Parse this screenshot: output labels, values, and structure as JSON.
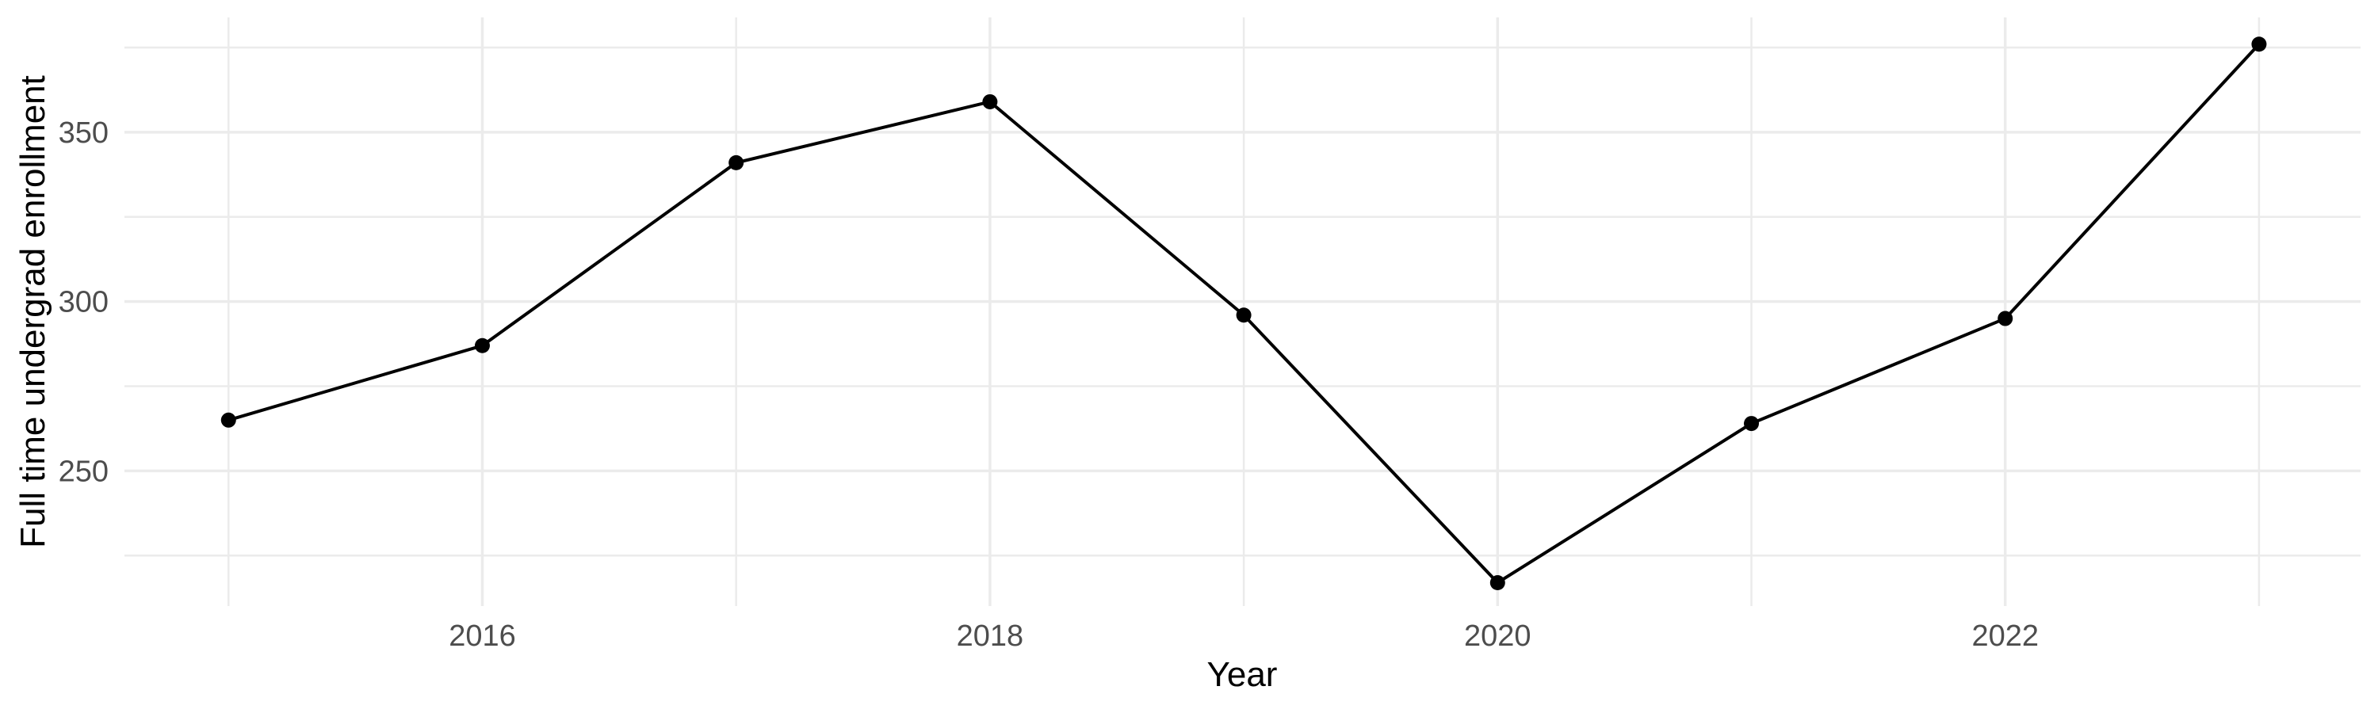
{
  "chart_data": {
    "type": "line",
    "title": "",
    "xlabel": "Year",
    "ylabel": "Full time undergrad enrollment",
    "x": [
      2015,
      2016,
      2017,
      2018,
      2019,
      2020,
      2021,
      2022,
      2023
    ],
    "series": [
      {
        "name": "Full time undergrad enrollment",
        "values": [
          265,
          287,
          341,
          359,
          296,
          217,
          264,
          295,
          376
        ]
      }
    ],
    "x_ticks_major": [
      2016,
      2018,
      2020,
      2022
    ],
    "x_ticks_minor": [
      2015,
      2017,
      2019,
      2021,
      2023
    ],
    "y_ticks_major": [
      250,
      300,
      350
    ],
    "y_ticks_minor": [
      225,
      275,
      325,
      375
    ],
    "xlim": [
      2014.59,
      2023.4
    ],
    "ylim": [
      210.1,
      383.9
    ],
    "grid": "major and minor, no panel border, no tick marks",
    "legend": false,
    "colors": {
      "line": "#000000",
      "point": "#000000",
      "grid_major": "#ebebeb",
      "grid_minor": "#ebebeb",
      "tick_label": "#4d4d4d",
      "axis_title": "#000000",
      "background": "#ffffff"
    }
  }
}
